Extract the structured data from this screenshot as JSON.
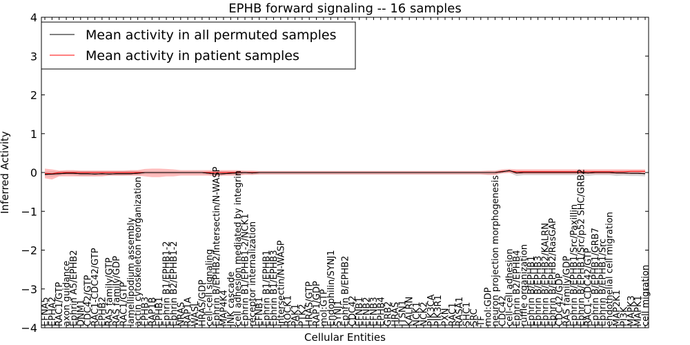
{
  "chart_data": {
    "type": "line",
    "title": "EPHB forward signaling -- 16 samples",
    "xlabel": "Cellular Entities",
    "ylabel": "Inferred Activity",
    "ylim": [
      -4,
      4
    ],
    "yticks": [
      -4,
      -3,
      -2,
      -1,
      0,
      1,
      2,
      3,
      4
    ],
    "grid": false,
    "legend_placement": "top-left",
    "categories": [
      "EFNA5",
      "EPHA2",
      "RAC1/GTP",
      "axon guidance",
      "Ephrin A5/EPHB2",
      "DNM1",
      "CDC42/GTP",
      "RAC1-CDC42/GTP",
      "EPHB2",
      "RAS family/GTP",
      "RAS family/GDP",
      "RAC1/GTP",
      "lamellipodium assembly",
      "actin cytoskeleton reorganization",
      "EPHB3",
      "RAP1B",
      "EPHB1",
      "Ephrin B1/EPHB1-2",
      "Ephrin B2/EPHB1-2",
      "NRAS",
      "RAP1A",
      "WASL",
      "HRAS/GDP",
      "cell-cell signaling",
      "Ephrin B/EPHB2/Intersectin/N-WASP",
      "MAP4K4",
      "JNK cascade",
      "cell adhesion mediated by integrin",
      "Ephrin B1/EPHB1-2/NCK1",
      "receptor internalization",
      "EFNB1",
      "Ephrin B1/EPHB1",
      "Ephrin B1/EPHB3",
      "Intersectin/N-WASP",
      "ROCK1",
      "PAK1",
      "PTK2",
      "HRAS/GTP",
      "RAP1/GDP",
      "mol:GTP",
      "Endophilin/SYNJ1",
      "SYNJ1",
      "Ephrin B/EPHB2",
      "CDC42",
      "EFNB1",
      "EFNB2",
      "EFNB3",
      "EPHB4",
      "GRB2",
      "HRAS",
      "ITSN1",
      "KALRN",
      "NCK1",
      "NCK2",
      "PIK3CA",
      "PIK3R1",
      "PXN",
      "RAC1",
      "RASA1",
      "SHC1",
      "SRC",
      "TF",
      "mol:GDP",
      "neuron projection morphogenesis",
      "CDC42",
      "cell-cell adhesion",
      "Ephrin B2/EPHB4",
      "ruffle organization",
      "Ephrin B/EPHB1",
      "Ephrin B/EPHB3",
      "Ephrin B/EPHB2/KALRN",
      "Ephrin B/EPHB2/RasGAP",
      "CDC42/GDP",
      "RAS family/GDP",
      "Ephrin B/EPHB1/Src/Paxillin",
      "Ephrin B/EPHB1/Src/p52 SHC/GRB2",
      "RAC1-CDC42/GTP",
      "Ephrin B/EPHB1/GRB7",
      "Ephrin B/EPHB1/Src",
      "endothelial cell migration",
      "MAP2K1",
      "PI3K",
      "MAPK3",
      "MAPK1",
      "cell migration"
    ],
    "series": [
      {
        "name": "Mean activity in all permuted samples",
        "color": "#000000",
        "values": [
          -0.05,
          -0.04,
          -0.03,
          -0.02,
          -0.02,
          -0.03,
          -0.03,
          -0.04,
          -0.03,
          -0.04,
          -0.03,
          -0.03,
          -0.03,
          -0.02,
          0,
          0,
          0,
          0,
          0,
          0,
          0,
          0,
          0,
          -0.02,
          -0.04,
          -0.03,
          -0.02,
          -0.01,
          0,
          -0.01,
          0,
          0,
          0,
          0,
          0,
          0,
          0,
          0,
          0,
          0,
          0,
          0,
          0,
          0,
          0,
          0,
          0,
          0,
          0,
          0,
          0,
          0,
          0,
          0,
          0,
          0,
          0,
          0,
          0,
          0,
          0,
          0,
          0,
          0,
          0.02,
          0.05,
          -0.01,
          0,
          0,
          0,
          0,
          0,
          0,
          0,
          0,
          0,
          -0.01,
          0,
          0,
          0,
          -0.01,
          -0.01,
          -0.02,
          -0.02,
          -0.03
        ],
        "upper": [
          0.02,
          0.03,
          0.03,
          0.04,
          0.04,
          0.04,
          0.04,
          0.04,
          0.04,
          0.04,
          0.04,
          0.04,
          0.04,
          0.04,
          0.02,
          0.02,
          0.02,
          0.02,
          0.02,
          0.02,
          0.02,
          0.02,
          0.02,
          0.03,
          0.03,
          0.03,
          0.03,
          0.03,
          0.03,
          0.03,
          0.03,
          0.03,
          0.03,
          0.03,
          0.03,
          0.03,
          0.03,
          0.03,
          0.03,
          0.03,
          0.03,
          0.03,
          0.03,
          0.03,
          0.03,
          0.03,
          0.03,
          0.03,
          0.03,
          0.03,
          0.03,
          0.03,
          0.03,
          0.03,
          0.03,
          0.03,
          0.03,
          0.03,
          0.03,
          0.03,
          0.03,
          0.03,
          0.03,
          0.03,
          0.05,
          0.06,
          0.04,
          0.04,
          0.04,
          0.04,
          0.04,
          0.04,
          0.04,
          0.04,
          0.04,
          0.04,
          0.04,
          0.04,
          0.04,
          0.04,
          0.04,
          0.04,
          0.04,
          0.04,
          0.04
        ],
        "lower": [
          -0.09,
          -0.1,
          -0.08,
          -0.06,
          -0.07,
          -0.09,
          -0.09,
          -0.09,
          -0.08,
          -0.08,
          -0.08,
          -0.08,
          -0.07,
          -0.07,
          -0.04,
          -0.04,
          -0.04,
          -0.04,
          -0.04,
          -0.04,
          -0.04,
          -0.04,
          -0.04,
          -0.06,
          -0.08,
          -0.07,
          -0.06,
          -0.06,
          -0.05,
          -0.06,
          -0.05,
          -0.05,
          -0.05,
          -0.05,
          -0.05,
          -0.05,
          -0.05,
          -0.05,
          -0.05,
          -0.05,
          -0.05,
          -0.05,
          -0.05,
          -0.05,
          -0.05,
          -0.05,
          -0.05,
          -0.05,
          -0.05,
          -0.05,
          -0.05,
          -0.05,
          -0.05,
          -0.05,
          -0.05,
          -0.05,
          -0.05,
          -0.05,
          -0.05,
          -0.05,
          -0.05,
          -0.05,
          -0.06,
          -0.06,
          -0.02,
          0,
          -0.09,
          -0.07,
          -0.07,
          -0.07,
          -0.07,
          -0.07,
          -0.07,
          -0.07,
          -0.07,
          -0.07,
          -0.09,
          -0.07,
          -0.07,
          -0.07,
          -0.09,
          -0.08,
          -0.09,
          -0.09,
          -0.1
        ]
      },
      {
        "name": "Mean activity in patient samples",
        "color": "#ff0000",
        "values": [
          -0.02,
          -0.03,
          0,
          0,
          0,
          0,
          0,
          0,
          0,
          0,
          0,
          0,
          0,
          0,
          0,
          0,
          0,
          0,
          0,
          0,
          0,
          0,
          0,
          0,
          0,
          0,
          0,
          0,
          0,
          0,
          0,
          0,
          0,
          0,
          0,
          0,
          0,
          0,
          0,
          0,
          0,
          0,
          0,
          0,
          0,
          0,
          0,
          0,
          0,
          0,
          0,
          0,
          0,
          0,
          0,
          0,
          0,
          0,
          0,
          0,
          0,
          0,
          0,
          0,
          0.03,
          0.04,
          0.02,
          0.02,
          0.02,
          0.02,
          0.02,
          0.02,
          0.02,
          0.02,
          0.02,
          0.02,
          0.02,
          0.02,
          0.02,
          0.02,
          0.02,
          0.02,
          0.03,
          0.03,
          0.03
        ],
        "upper": [
          0.1,
          0.08,
          0.05,
          0.06,
          0.06,
          0.05,
          0.05,
          0.05,
          0.05,
          0.05,
          0.05,
          0.05,
          0.06,
          0.06,
          0.09,
          0.1,
          0.1,
          0.09,
          0.08,
          0.06,
          0.06,
          0.06,
          0.06,
          0.06,
          0.06,
          0.06,
          0.06,
          0.06,
          0.05,
          0.05,
          0.04,
          0.04,
          0.04,
          0.04,
          0.04,
          0.04,
          0.04,
          0.04,
          0.04,
          0.04,
          0.04,
          0.04,
          0.04,
          0.04,
          0.04,
          0.04,
          0.04,
          0.04,
          0.04,
          0.04,
          0.04,
          0.04,
          0.04,
          0.04,
          0.04,
          0.04,
          0.04,
          0.04,
          0.04,
          0.04,
          0.04,
          0.04,
          0.05,
          0.05,
          0.08,
          0.09,
          0.08,
          0.08,
          0.08,
          0.08,
          0.08,
          0.08,
          0.08,
          0.08,
          0.08,
          0.08,
          0.08,
          0.08,
          0.08,
          0.08,
          0.08,
          0.08,
          0.08,
          0.08,
          0.08
        ],
        "lower": [
          -0.15,
          -0.18,
          -0.1,
          -0.1,
          -0.1,
          -0.1,
          -0.1,
          -0.1,
          -0.1,
          -0.08,
          -0.08,
          -0.08,
          -0.08,
          -0.08,
          -0.1,
          -0.12,
          -0.12,
          -0.1,
          -0.1,
          -0.08,
          -0.08,
          -0.08,
          -0.08,
          -0.08,
          -0.1,
          -0.08,
          -0.08,
          -0.08,
          -0.06,
          -0.06,
          -0.05,
          -0.05,
          -0.05,
          -0.05,
          -0.05,
          -0.05,
          -0.05,
          -0.05,
          -0.05,
          -0.05,
          -0.05,
          -0.05,
          -0.05,
          -0.05,
          -0.05,
          -0.05,
          -0.05,
          -0.05,
          -0.05,
          -0.05,
          -0.05,
          -0.05,
          -0.05,
          -0.05,
          -0.05,
          -0.05,
          -0.05,
          -0.05,
          -0.05,
          -0.05,
          -0.05,
          -0.05,
          -0.06,
          -0.06,
          -0.02,
          -0.01,
          -0.04,
          -0.04,
          -0.04,
          -0.04,
          -0.04,
          -0.04,
          -0.04,
          -0.04,
          -0.04,
          -0.04,
          -0.04,
          -0.04,
          -0.04,
          -0.04,
          -0.04,
          -0.04,
          -0.04,
          -0.04,
          -0.04
        ]
      }
    ]
  }
}
